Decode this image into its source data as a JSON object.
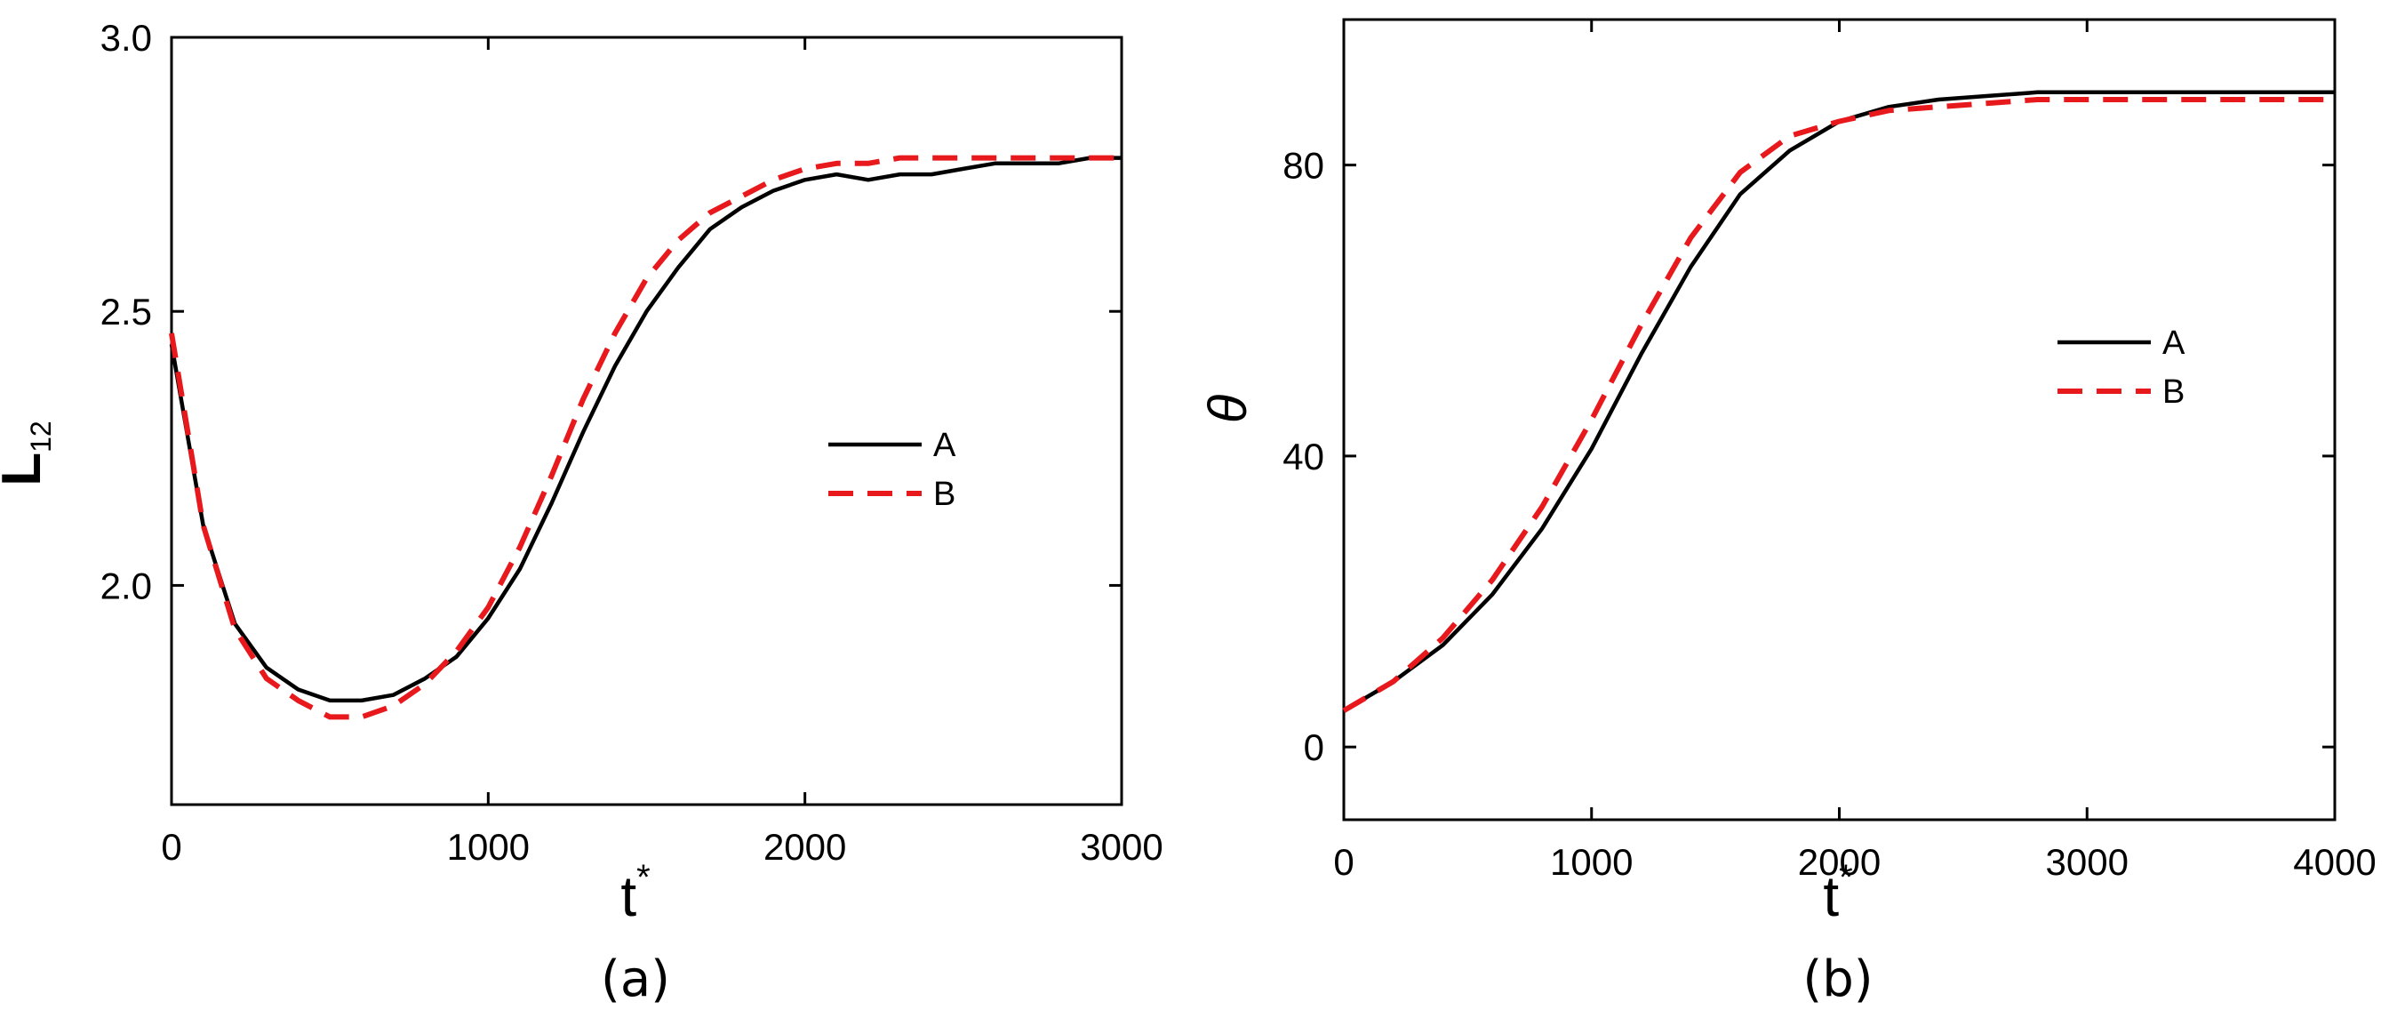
{
  "chart_data": [
    {
      "type": "line",
      "panel_label": "(a)",
      "xlabel": "t",
      "xlabel_sup": "*",
      "ylabel": "L",
      "ylabel_sub": "12",
      "xlim": [
        0,
        3000
      ],
      "ylim": [
        1.6,
        3.0
      ],
      "x_ticks": [
        0,
        1000,
        2000,
        3000
      ],
      "x_tick_labels": [
        "0",
        "1000",
        "2000",
        "3000"
      ],
      "y_ticks": [
        2.0,
        2.5,
        3.0
      ],
      "y_tick_labels": [
        "2.0",
        "2.5",
        "3.0"
      ],
      "grid": false,
      "legend_position": "right-center",
      "series": [
        {
          "name": "A",
          "color": "#000000",
          "dash": "solid",
          "x": [
            0,
            100,
            200,
            300,
            400,
            500,
            600,
            700,
            800,
            900,
            1000,
            1100,
            1200,
            1300,
            1400,
            1500,
            1600,
            1700,
            1800,
            1900,
            2000,
            2100,
            2200,
            2300,
            2400,
            2500,
            2600,
            2700,
            2800,
            2900,
            3000
          ],
          "y": [
            2.44,
            2.11,
            1.93,
            1.85,
            1.81,
            1.79,
            1.79,
            1.8,
            1.83,
            1.87,
            1.94,
            2.03,
            2.15,
            2.28,
            2.4,
            2.5,
            2.58,
            2.65,
            2.69,
            2.72,
            2.74,
            2.75,
            2.74,
            2.75,
            2.75,
            2.76,
            2.77,
            2.77,
            2.77,
            2.78,
            2.78
          ]
        },
        {
          "name": "B",
          "color": "#e8191c",
          "dash": "dashed",
          "x": [
            0,
            100,
            200,
            300,
            400,
            500,
            600,
            700,
            800,
            900,
            1000,
            1100,
            1200,
            1300,
            1400,
            1500,
            1600,
            1700,
            1800,
            1900,
            2000,
            2100,
            2200,
            2300,
            2400,
            2500,
            2600,
            2700,
            2800,
            2900,
            3000
          ],
          "y": [
            2.46,
            2.11,
            1.92,
            1.83,
            1.79,
            1.76,
            1.76,
            1.78,
            1.82,
            1.88,
            1.96,
            2.07,
            2.2,
            2.34,
            2.46,
            2.56,
            2.63,
            2.68,
            2.71,
            2.74,
            2.76,
            2.77,
            2.77,
            2.78,
            2.78,
            2.78,
            2.78,
            2.78,
            2.78,
            2.78,
            2.78
          ]
        }
      ]
    },
    {
      "type": "line",
      "panel_label": "(b)",
      "xlabel": "t",
      "xlabel_sup": "*",
      "ylabel": "θ",
      "xlim": [
        0,
        4000
      ],
      "ylim": [
        -10,
        100
      ],
      "x_ticks": [
        0,
        1000,
        2000,
        3000,
        4000
      ],
      "x_tick_labels": [
        "0",
        "1000",
        "2000",
        "3000",
        "4000"
      ],
      "y_ticks": [
        0,
        40,
        80
      ],
      "y_tick_labels": [
        "0",
        "40",
        "80"
      ],
      "grid": false,
      "legend_position": "right-center",
      "series": [
        {
          "name": "A",
          "color": "#000000",
          "dash": "solid",
          "x": [
            0,
            200,
            400,
            600,
            800,
            1000,
            1200,
            1400,
            1600,
            1800,
            2000,
            2200,
            2400,
            2600,
            2800,
            3000,
            3200,
            3400,
            3600,
            3800,
            4000
          ],
          "y": [
            5,
            9,
            14,
            21,
            30,
            41,
            54,
            66,
            76,
            82,
            86,
            88,
            89,
            89.5,
            90,
            90,
            90,
            90,
            90,
            90,
            90
          ]
        },
        {
          "name": "B",
          "color": "#e8191c",
          "dash": "dashed",
          "x": [
            0,
            200,
            400,
            600,
            800,
            1000,
            1200,
            1400,
            1600,
            1800,
            2000,
            2200,
            2400,
            2600,
            2800,
            3000,
            3200,
            3400,
            3600,
            3800,
            4000
          ],
          "y": [
            5,
            9,
            15,
            23,
            33,
            45,
            58,
            70,
            79,
            84,
            86,
            87.5,
            88,
            88.5,
            89,
            89,
            89,
            89,
            89,
            89,
            89
          ]
        }
      ]
    }
  ]
}
